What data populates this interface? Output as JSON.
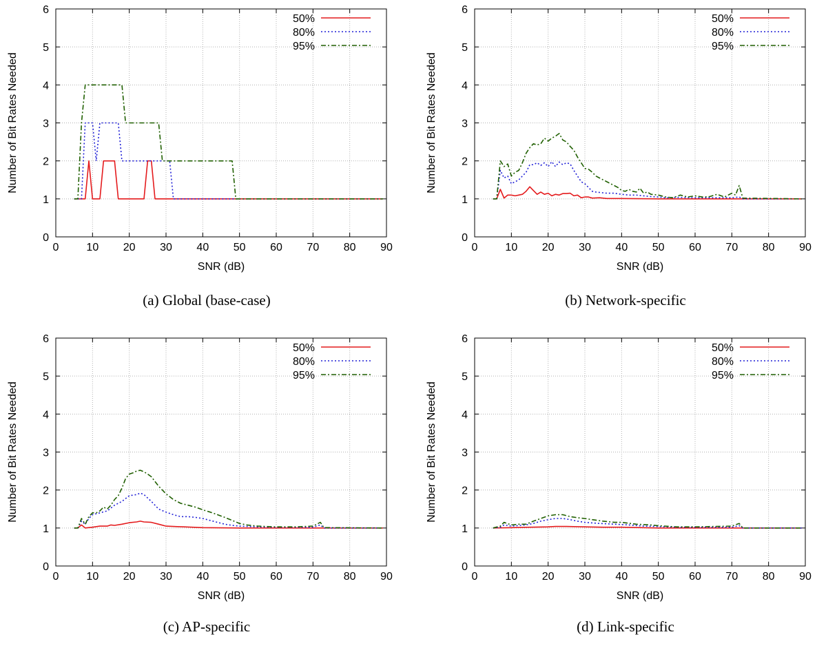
{
  "chart_data": [
    {
      "type": "line",
      "caption": "(a) Global (base-case)",
      "xlabel": "SNR (dB)",
      "ylabel": "Number of Bit Rates Needed",
      "xlim": [
        0,
        90
      ],
      "ylim": [
        0,
        6
      ],
      "xticks": [
        0,
        10,
        20,
        30,
        40,
        50,
        60,
        70,
        80,
        90
      ],
      "yticks": [
        0,
        1,
        2,
        3,
        4,
        5,
        6
      ],
      "grid": true,
      "legend": "top-right",
      "series": [
        {
          "name": "50%",
          "color": "#e41a1c",
          "dash": "solid",
          "x": [
            5,
            7,
            8,
            9,
            10,
            11,
            12,
            13,
            14,
            15,
            16,
            17,
            18,
            19,
            23,
            24,
            25,
            26,
            27,
            89
          ],
          "y": [
            1,
            1,
            1,
            2,
            1,
            1,
            1,
            2,
            2,
            2,
            2,
            1,
            1,
            1,
            1,
            1,
            2,
            2,
            1,
            1
          ]
        },
        {
          "name": "80%",
          "color": "#1f1fd6",
          "dash": "dotted",
          "x": [
            5,
            7,
            8,
            9,
            10,
            11,
            12,
            13,
            16,
            17,
            18,
            19,
            29,
            30,
            31,
            32,
            89
          ],
          "y": [
            1,
            1,
            3,
            3,
            3,
            2,
            3,
            3,
            3,
            3,
            2,
            2,
            2,
            2,
            2,
            1,
            1
          ]
        },
        {
          "name": "95%",
          "color": "#1f5f00",
          "dash": "dashdot",
          "x": [
            5,
            6,
            7,
            8,
            17,
            18,
            19,
            27,
            28,
            29,
            48,
            49,
            89
          ],
          "y": [
            1,
            1,
            3,
            4,
            4,
            4,
            3,
            3,
            3,
            2,
            2,
            1,
            1
          ]
        }
      ]
    },
    {
      "type": "line",
      "caption": "(b) Network-specific",
      "xlabel": "SNR (dB)",
      "ylabel": "Number of Bit Rates Needed",
      "xlim": [
        0,
        90
      ],
      "ylim": [
        0,
        6
      ],
      "xticks": [
        0,
        10,
        20,
        30,
        40,
        50,
        60,
        70,
        80,
        90
      ],
      "yticks": [
        0,
        1,
        2,
        3,
        4,
        5,
        6
      ],
      "grid": true,
      "legend": "top-right",
      "series": [
        {
          "name": "50%",
          "color": "#e41a1c",
          "dash": "solid",
          "x": [
            5,
            6,
            7,
            8,
            9,
            10,
            11,
            12,
            13,
            14,
            15,
            16,
            17,
            18,
            19,
            20,
            21,
            22,
            23,
            24,
            25,
            26,
            27,
            28,
            29,
            30,
            31,
            32,
            34,
            36,
            40,
            50,
            89
          ],
          "y": [
            1,
            1,
            1.25,
            1.02,
            1.1,
            1.1,
            1.08,
            1.1,
            1.12,
            1.2,
            1.32,
            1.22,
            1.12,
            1.18,
            1.12,
            1.15,
            1.08,
            1.12,
            1.1,
            1.14,
            1.14,
            1.15,
            1.08,
            1.1,
            1.03,
            1.05,
            1.05,
            1.02,
            1.03,
            1.01,
            1.01,
            1,
            1
          ]
        },
        {
          "name": "80%",
          "color": "#1f1fd6",
          "dash": "dotted",
          "x": [
            5,
            6,
            7,
            8,
            9,
            10,
            11,
            12,
            13,
            14,
            15,
            16,
            17,
            18,
            19,
            20,
            21,
            22,
            23,
            24,
            25,
            26,
            27,
            28,
            29,
            30,
            31,
            32,
            33,
            34,
            36,
            38,
            40,
            42,
            44,
            46,
            48,
            50,
            52,
            55,
            60,
            65,
            70,
            72,
            73,
            89
          ],
          "y": [
            1,
            1,
            1.75,
            1.55,
            1.6,
            1.4,
            1.45,
            1.5,
            1.6,
            1.7,
            1.9,
            1.9,
            1.95,
            1.88,
            1.95,
            1.85,
            1.98,
            1.85,
            1.97,
            1.9,
            1.95,
            1.92,
            1.75,
            1.6,
            1.45,
            1.4,
            1.3,
            1.2,
            1.18,
            1.17,
            1.15,
            1.15,
            1.12,
            1.1,
            1.1,
            1.08,
            1.06,
            1.05,
            1.03,
            1.04,
            1.03,
            1.03,
            1.03,
            1.05,
            1,
            1
          ]
        },
        {
          "name": "95%",
          "color": "#1f5f00",
          "dash": "dashdot",
          "x": [
            5,
            6,
            7,
            8,
            9,
            10,
            11,
            12,
            13,
            14,
            15,
            16,
            17,
            18,
            19,
            20,
            21,
            22,
            23,
            24,
            25,
            26,
            27,
            28,
            29,
            30,
            31,
            32,
            33,
            34,
            35,
            36,
            37,
            38,
            39,
            40,
            41,
            42,
            43,
            44,
            45,
            46,
            47,
            48,
            50,
            52,
            54,
            56,
            58,
            60,
            62,
            64,
            66,
            68,
            70,
            71,
            72,
            73,
            89
          ],
          "y": [
            1,
            1,
            2,
            1.85,
            1.92,
            1.6,
            1.7,
            1.75,
            1.95,
            2.2,
            2.35,
            2.45,
            2.42,
            2.45,
            2.6,
            2.52,
            2.6,
            2.65,
            2.72,
            2.55,
            2.5,
            2.38,
            2.28,
            2.1,
            1.95,
            1.8,
            1.78,
            1.7,
            1.6,
            1.55,
            1.5,
            1.45,
            1.4,
            1.35,
            1.3,
            1.22,
            1.2,
            1.25,
            1.2,
            1.18,
            1.28,
            1.15,
            1.18,
            1.12,
            1.1,
            1.05,
            1.03,
            1.1,
            1.05,
            1.08,
            1.05,
            1.06,
            1.12,
            1.05,
            1.15,
            1.1,
            1.35,
            1.02,
            1
          ]
        }
      ]
    },
    {
      "type": "line",
      "caption": "(c) AP-specific",
      "xlabel": "SNR (dB)",
      "ylabel": "Number of Bit Rates Needed",
      "xlim": [
        0,
        90
      ],
      "ylim": [
        0,
        6
      ],
      "xticks": [
        0,
        10,
        20,
        30,
        40,
        50,
        60,
        70,
        80,
        90
      ],
      "yticks": [
        0,
        1,
        2,
        3,
        4,
        5,
        6
      ],
      "grid": true,
      "legend": "top-right",
      "series": [
        {
          "name": "50%",
          "color": "#e41a1c",
          "dash": "solid",
          "x": [
            5,
            6,
            7,
            8,
            10,
            12,
            14,
            15,
            16,
            18,
            20,
            22,
            23,
            24,
            26,
            28,
            30,
            32,
            35,
            40,
            50,
            89
          ],
          "y": [
            1,
            1,
            1.08,
            1.0,
            1.02,
            1.05,
            1.05,
            1.08,
            1.07,
            1.1,
            1.14,
            1.16,
            1.18,
            1.16,
            1.15,
            1.1,
            1.05,
            1.04,
            1.03,
            1.01,
            1,
            1
          ]
        },
        {
          "name": "80%",
          "color": "#1f1fd6",
          "dash": "dotted",
          "x": [
            5,
            6,
            7,
            8,
            9,
            10,
            12,
            14,
            16,
            18,
            20,
            22,
            23,
            24,
            26,
            28,
            30,
            32,
            34,
            36,
            38,
            40,
            42,
            44,
            46,
            48,
            50,
            55,
            60,
            70,
            72,
            73,
            89
          ],
          "y": [
            1,
            1,
            1.18,
            1.1,
            1.25,
            1.35,
            1.4,
            1.45,
            1.6,
            1.7,
            1.85,
            1.88,
            1.92,
            1.88,
            1.7,
            1.5,
            1.42,
            1.35,
            1.3,
            1.3,
            1.28,
            1.25,
            1.2,
            1.15,
            1.1,
            1.07,
            1.05,
            1.03,
            1.02,
            1.02,
            1.08,
            1,
            1
          ]
        },
        {
          "name": "95%",
          "color": "#1f5f00",
          "dash": "dashdot",
          "x": [
            5,
            6,
            7,
            8,
            9,
            10,
            11,
            12,
            13,
            14,
            15,
            16,
            17,
            18,
            19,
            20,
            21,
            22,
            23,
            24,
            25,
            26,
            28,
            30,
            32,
            34,
            36,
            38,
            40,
            42,
            44,
            46,
            48,
            50,
            52,
            55,
            60,
            65,
            70,
            72,
            73,
            89
          ],
          "y": [
            1,
            1,
            1.25,
            1.1,
            1.3,
            1.4,
            1.4,
            1.45,
            1.55,
            1.5,
            1.6,
            1.75,
            1.85,
            2.05,
            2.3,
            2.42,
            2.45,
            2.5,
            2.52,
            2.48,
            2.42,
            2.35,
            2.1,
            1.9,
            1.75,
            1.65,
            1.6,
            1.55,
            1.48,
            1.42,
            1.35,
            1.28,
            1.2,
            1.12,
            1.08,
            1.05,
            1.03,
            1.03,
            1.05,
            1.15,
            1.01,
            1
          ]
        }
      ]
    },
    {
      "type": "line",
      "caption": "(d) Link-specific",
      "xlabel": "SNR (dB)",
      "ylabel": "Number of Bit Rates Needed",
      "xlim": [
        0,
        90
      ],
      "ylim": [
        0,
        6
      ],
      "xticks": [
        0,
        10,
        20,
        30,
        40,
        50,
        60,
        70,
        80,
        90
      ],
      "yticks": [
        0,
        1,
        2,
        3,
        4,
        5,
        6
      ],
      "grid": true,
      "legend": "top-right",
      "series": [
        {
          "name": "50%",
          "color": "#e41a1c",
          "dash": "solid",
          "x": [
            5,
            10,
            15,
            20,
            22,
            25,
            30,
            35,
            40,
            50,
            89
          ],
          "y": [
            1,
            1.01,
            1.02,
            1.03,
            1.04,
            1.04,
            1.03,
            1.02,
            1.02,
            1.0,
            1
          ]
        },
        {
          "name": "80%",
          "color": "#1f1fd6",
          "dash": "dotted",
          "x": [
            5,
            7,
            8,
            10,
            14,
            16,
            18,
            20,
            22,
            24,
            26,
            28,
            30,
            34,
            38,
            42,
            46,
            50,
            55,
            60,
            70,
            72,
            73,
            89
          ],
          "y": [
            1,
            1.02,
            1.08,
            1.05,
            1.08,
            1.12,
            1.18,
            1.22,
            1.25,
            1.25,
            1.22,
            1.18,
            1.15,
            1.12,
            1.1,
            1.08,
            1.05,
            1.04,
            1.02,
            1.02,
            1.02,
            1.06,
            1.0,
            1
          ]
        },
        {
          "name": "95%",
          "color": "#1f5f00",
          "dash": "dashdot",
          "x": [
            5,
            7,
            8,
            10,
            12,
            14,
            16,
            18,
            20,
            22,
            24,
            26,
            28,
            30,
            32,
            35,
            38,
            40,
            44,
            48,
            50,
            55,
            60,
            65,
            70,
            72,
            73,
            89
          ],
          "y": [
            1,
            1.05,
            1.15,
            1.08,
            1.1,
            1.1,
            1.18,
            1.25,
            1.32,
            1.35,
            1.35,
            1.3,
            1.27,
            1.25,
            1.22,
            1.18,
            1.15,
            1.15,
            1.1,
            1.08,
            1.06,
            1.03,
            1.03,
            1.04,
            1.05,
            1.12,
            1.0,
            1
          ]
        }
      ]
    }
  ]
}
